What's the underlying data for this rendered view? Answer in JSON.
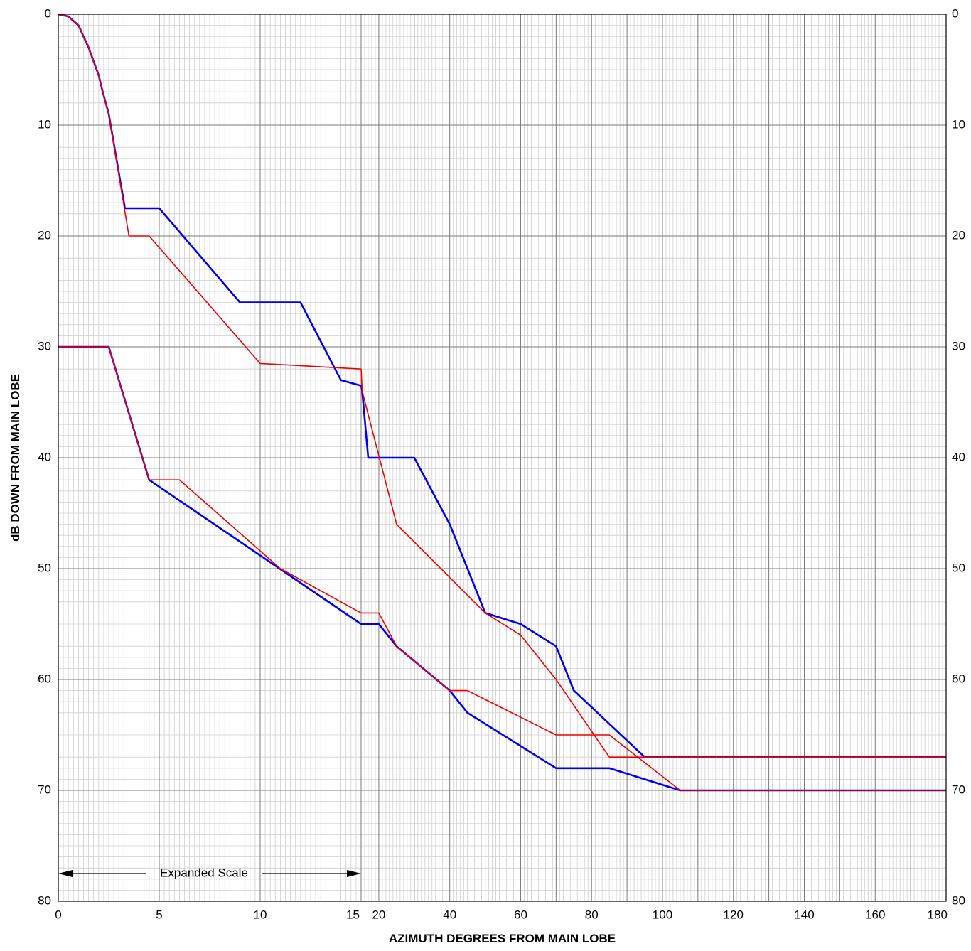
{
  "chart_data": {
    "type": "line",
    "title": "",
    "xlabel": "AZIMUTH DEGREES FROM MAIN LOBE",
    "ylabel": "dB DOWN FROM MAIN LOBE",
    "x_scale": "piecewise: expanded scale 0–15 deg, compressed scale 15–180 deg",
    "xlim": [
      0,
      180
    ],
    "ylim": [
      0,
      80
    ],
    "y_inverted": true,
    "y_ticks": [
      0,
      10,
      20,
      30,
      40,
      50,
      60,
      70,
      80
    ],
    "x_ticks_expanded": [
      0,
      5,
      10,
      15
    ],
    "x_ticks_compressed": [
      20,
      40,
      60,
      80,
      100,
      120,
      140,
      160,
      180
    ],
    "grid": true,
    "annotation": {
      "text": "Expanded Scale",
      "from_x": 0,
      "to_x": 15,
      "y": 77.5
    },
    "colors": {
      "blue": "#0000ee",
      "red": "#ee0000"
    },
    "series": [
      {
        "color": "blue",
        "points": [
          [
            0,
            0
          ],
          [
            0.5,
            0.2
          ],
          [
            1,
            1
          ],
          [
            1.5,
            3
          ],
          [
            2,
            5.5
          ],
          [
            2.2,
            7
          ],
          [
            2.5,
            9
          ],
          [
            3.3,
            17.5
          ],
          [
            5,
            17.5
          ],
          [
            9,
            26
          ],
          [
            12,
            26
          ],
          [
            14,
            33
          ],
          [
            15,
            33.5
          ],
          [
            15.3,
            34
          ],
          [
            17,
            40
          ],
          [
            30,
            40
          ],
          [
            40,
            46
          ],
          [
            50,
            54
          ],
          [
            60,
            55
          ],
          [
            70,
            57
          ],
          [
            75,
            61
          ],
          [
            95,
            67
          ],
          [
            180,
            67
          ]
        ]
      },
      {
        "color": "red",
        "points": [
          [
            0,
            0
          ],
          [
            0.5,
            0.2
          ],
          [
            1,
            1
          ],
          [
            1.5,
            3
          ],
          [
            2,
            5.5
          ],
          [
            2.2,
            7
          ],
          [
            2.5,
            9
          ],
          [
            3.5,
            20
          ],
          [
            4.5,
            20
          ],
          [
            10,
            31.5
          ],
          [
            15,
            32
          ],
          [
            15.3,
            34
          ],
          [
            25,
            46
          ],
          [
            50,
            54
          ],
          [
            60,
            56
          ],
          [
            70,
            60
          ],
          [
            85,
            67
          ],
          [
            180,
            67
          ]
        ]
      },
      {
        "color": "blue",
        "points": [
          [
            0,
            30
          ],
          [
            2.5,
            30
          ],
          [
            4.5,
            42
          ],
          [
            15,
            55
          ],
          [
            20,
            55
          ],
          [
            25,
            57
          ],
          [
            40,
            61
          ],
          [
            45,
            63
          ],
          [
            70,
            68
          ],
          [
            85,
            68
          ],
          [
            105,
            70
          ],
          [
            180,
            70
          ]
        ]
      },
      {
        "color": "red",
        "points": [
          [
            0,
            30
          ],
          [
            2.5,
            30
          ],
          [
            4.5,
            42
          ],
          [
            6,
            42
          ],
          [
            11,
            50
          ],
          [
            15,
            54
          ],
          [
            20,
            54
          ],
          [
            25,
            57
          ],
          [
            40,
            61
          ],
          [
            45,
            61
          ],
          [
            70,
            65
          ],
          [
            85,
            65
          ],
          [
            105,
            70
          ],
          [
            180,
            70
          ]
        ]
      }
    ]
  }
}
